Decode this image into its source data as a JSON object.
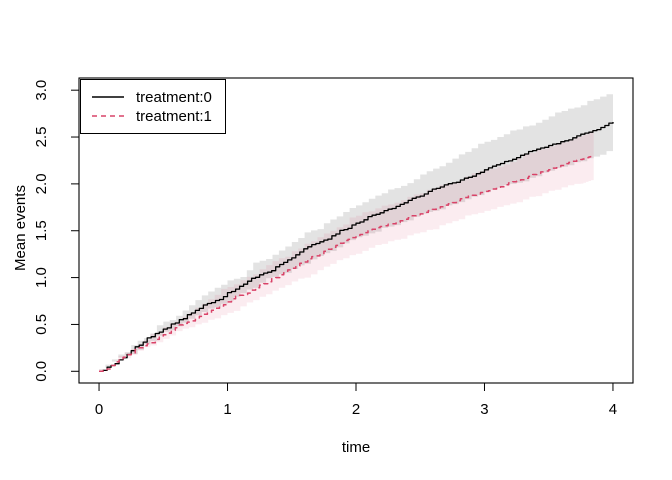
{
  "figure": {
    "background": "#ffffff",
    "border_color": "#000000"
  },
  "chart_data": {
    "type": "line",
    "title": "",
    "xlabel": "time",
    "ylabel": "Mean events",
    "xlim": [
      -0.156,
      4.156
    ],
    "ylim": [
      -0.125,
      3.13
    ],
    "x_ticks": [
      0,
      1,
      2,
      3,
      4
    ],
    "y_tick_values": [
      0,
      0.5,
      1,
      1.5,
      2,
      2.5,
      3
    ],
    "y_tick_labels": [
      "0.0",
      "0.5",
      "1.0",
      "1.5",
      "2.0",
      "2.5",
      "3.0"
    ],
    "grid": false,
    "legend": {
      "position": "topleft",
      "entries": [
        {
          "label": "treatment:0",
          "color": "#000000",
          "style": "solid"
        },
        {
          "label": "treatment:1",
          "color": "#d94368",
          "style": "dashed"
        }
      ]
    },
    "series": [
      {
        "name": "treatment:0",
        "line_color": "#000000",
        "line_style": "solid",
        "band_color": "rgba(0,0,0,0.11)",
        "x": [
          0,
          0.25,
          0.5,
          0.75,
          1.0,
          1.25,
          1.5,
          1.75,
          2.0,
          2.25,
          2.5,
          2.75,
          3.0,
          3.25,
          3.5,
          3.75,
          4.0
        ],
        "y": [
          0,
          0.22,
          0.45,
          0.65,
          0.84,
          1.03,
          1.21,
          1.4,
          1.58,
          1.73,
          1.87,
          2.01,
          2.15,
          2.28,
          2.41,
          2.53,
          2.66
        ],
        "upper": [
          0.02,
          0.28,
          0.53,
          0.76,
          0.97,
          1.18,
          1.38,
          1.58,
          1.77,
          1.94,
          2.1,
          2.27,
          2.45,
          2.58,
          2.72,
          2.84,
          3.0
        ],
        "lower": [
          0,
          0.17,
          0.38,
          0.56,
          0.72,
          0.89,
          1.05,
          1.23,
          1.4,
          1.53,
          1.65,
          1.77,
          1.88,
          2.0,
          2.12,
          2.23,
          2.35
        ]
      },
      {
        "name": "treatment:1",
        "line_color": "#d94368",
        "line_style": "dashed",
        "band_color": "rgba(217,67,104,0.10)",
        "x": [
          0,
          0.25,
          0.5,
          0.75,
          1.0,
          1.25,
          1.5,
          1.75,
          2.0,
          2.25,
          2.5,
          2.75,
          3.0,
          3.25,
          3.5,
          3.75,
          3.85
        ],
        "y": [
          0,
          0.19,
          0.39,
          0.57,
          0.74,
          0.92,
          1.1,
          1.28,
          1.45,
          1.57,
          1.68,
          1.8,
          1.92,
          2.03,
          2.15,
          2.26,
          2.3
        ],
        "upper": [
          0.02,
          0.24,
          0.47,
          0.68,
          0.9,
          1.09,
          1.28,
          1.47,
          1.66,
          1.78,
          1.9,
          2.02,
          2.15,
          2.27,
          2.4,
          2.51,
          2.56
        ],
        "lower": [
          0,
          0.14,
          0.31,
          0.47,
          0.6,
          0.76,
          0.92,
          1.08,
          1.24,
          1.36,
          1.47,
          1.58,
          1.69,
          1.79,
          1.9,
          2.0,
          2.04
        ]
      }
    ]
  }
}
